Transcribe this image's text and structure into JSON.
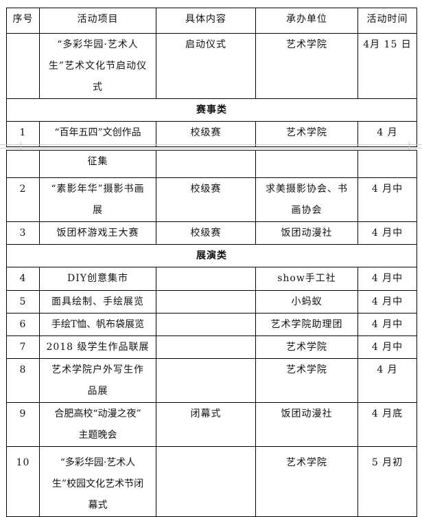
{
  "headers": [
    "序号",
    "活动项目",
    "具体内容",
    "承办单位",
    "活动时间"
  ],
  "opening": {
    "num": "",
    "project": "“多彩华园·艺术人\n生”艺术文化节启动仪\n式",
    "content": "启动仪式",
    "org": "艺术学院",
    "time": "4月 15 日"
  },
  "section1": "赛事类",
  "row1": {
    "num": "1",
    "project": "“百年五四”文创作品",
    "content": "校级赛",
    "org": "艺术学院",
    "time": "4 月"
  },
  "row1_cont": {
    "project": "征集"
  },
  "rows_a": [
    {
      "num": "2",
      "project": "“素影年华”摄影书画\n展",
      "content": "校级赛",
      "org": "求美摄影协会、书\n画协会",
      "time": "4 月中"
    },
    {
      "num": "3",
      "project": "饭团杯游戏王大赛",
      "content": "校级赛",
      "org": "饭团动漫社",
      "time": "4 月中"
    }
  ],
  "section2": "展演类",
  "rows_b": [
    {
      "num": "4",
      "project": "DIY创意集市",
      "content": "",
      "org": "show手工社",
      "time": "4 月中"
    },
    {
      "num": "5",
      "project": "面具绘制、手绘展览",
      "content": "",
      "org": "小蚂蚁",
      "time": "4 月中"
    },
    {
      "num": "6",
      "project": "手绘T恤、帆布袋展览",
      "content": "",
      "org": "艺术学院助理团",
      "time": "4 月中"
    },
    {
      "num": "7",
      "project": "2018 级学生作品联展",
      "content": "",
      "org": "艺术学院",
      "time": "4 月中"
    },
    {
      "num": "8",
      "project": "艺术学院户外写生作\n品展",
      "content": "",
      "org": "艺术学院",
      "time": "4 月"
    },
    {
      "num": "9",
      "project": "合肥高校“动漫之夜”\n主题晚会",
      "content": "闭幕式",
      "org": "饭团动漫社",
      "time": "4 月底"
    },
    {
      "num": "10",
      "project": "“多彩华园·艺术人\n生”校园文化艺术节闭\n幕式",
      "content": "",
      "org": "艺术学院",
      "time": "5 月初"
    }
  ]
}
